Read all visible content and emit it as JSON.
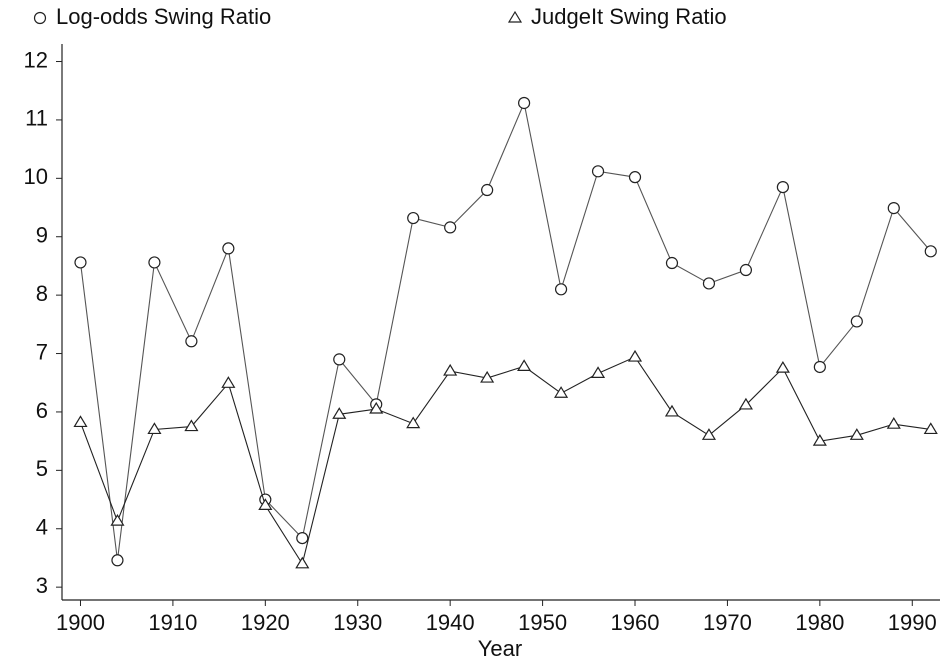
{
  "chart_data": {
    "type": "line",
    "x_label": "Year",
    "x": [
      1900,
      1904,
      1908,
      1912,
      1916,
      1920,
      1924,
      1928,
      1932,
      1936,
      1940,
      1944,
      1948,
      1952,
      1956,
      1960,
      1964,
      1968,
      1972,
      1976,
      1980,
      1984,
      1988,
      1992
    ],
    "series": [
      {
        "name": "Log-odds Swing Ratio",
        "marker": "circle",
        "color": "#555555",
        "values": [
          8.56,
          3.46,
          8.56,
          7.21,
          8.8,
          4.5,
          3.84,
          6.9,
          6.13,
          9.32,
          9.16,
          9.8,
          11.29,
          8.1,
          10.12,
          10.02,
          8.55,
          8.2,
          8.43,
          9.85,
          6.77,
          7.55,
          9.49,
          8.75
        ]
      },
      {
        "name": "JudgeIt Swing Ratio",
        "marker": "triangle",
        "color": "#222222",
        "values": [
          5.82,
          4.13,
          5.7,
          5.75,
          6.49,
          4.4,
          3.4,
          5.96,
          6.05,
          5.8,
          6.7,
          6.58,
          6.78,
          6.32,
          6.66,
          6.94,
          6.0,
          5.6,
          6.12,
          6.75,
          5.5,
          5.6,
          5.79,
          5.7
        ]
      }
    ],
    "xlim": [
      1898,
      1993
    ],
    "xticks": [
      1900,
      1910,
      1920,
      1930,
      1940,
      1950,
      1960,
      1970,
      1980,
      1990
    ],
    "ylim": [
      2.78,
      12.3
    ],
    "yticks": [
      3,
      4,
      5,
      6,
      7,
      8,
      9,
      10,
      11,
      12
    ],
    "grid": false
  }
}
